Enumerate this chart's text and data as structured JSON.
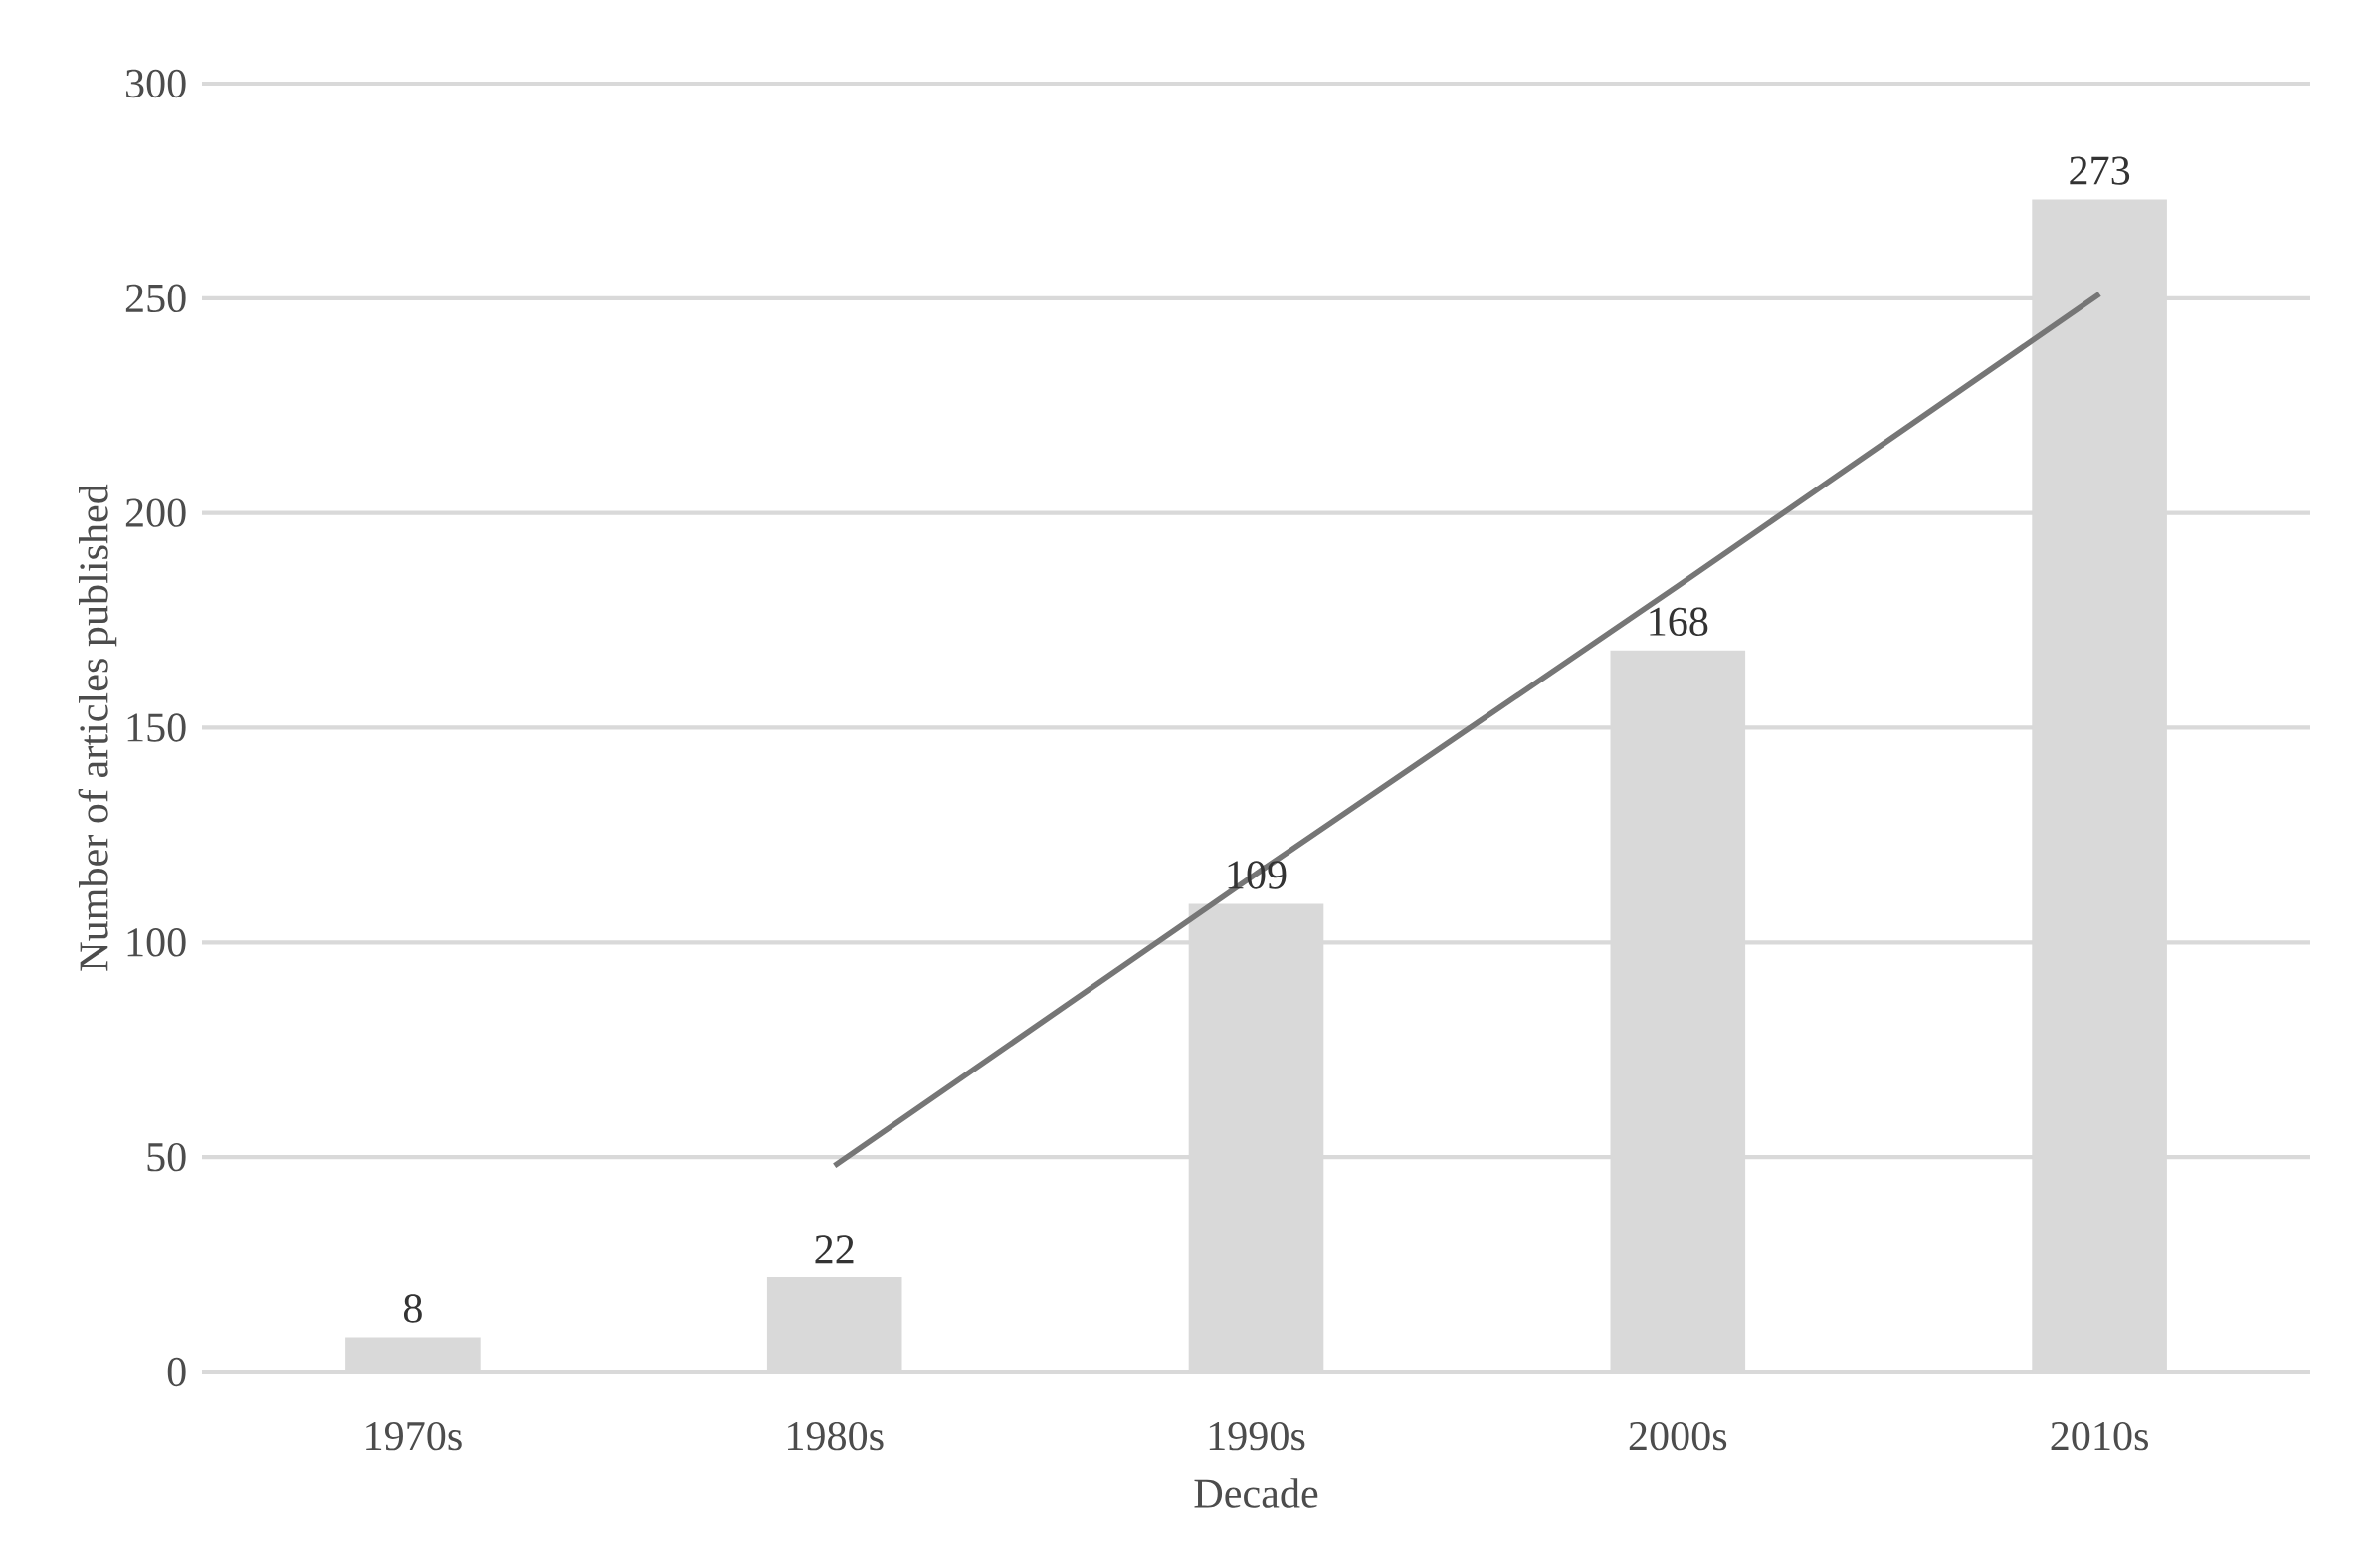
{
  "chart_data": {
    "type": "bar",
    "xlabel": "Decade",
    "ylabel": "Number of articles published",
    "categories": [
      "1970s",
      "1980s",
      "1990s",
      "2000s",
      "2010s"
    ],
    "series": [
      {
        "type": "bar",
        "color": "#d9d9d9",
        "values": [
          8,
          22,
          109,
          168,
          273
        ],
        "data_labels": true
      },
      {
        "type": "line",
        "color": "#767676",
        "values": [
          null,
          48,
          116,
          183,
          251
        ]
      }
    ],
    "ylim": [
      0,
      300
    ],
    "yticks": [
      0,
      50,
      100,
      150,
      200,
      250,
      300
    ],
    "grid": "y"
  }
}
